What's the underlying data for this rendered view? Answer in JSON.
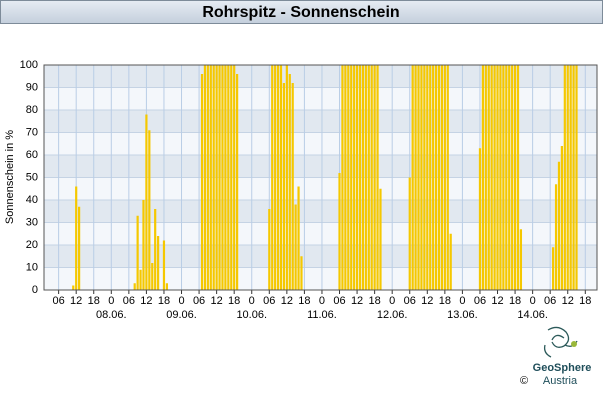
{
  "chart_data": {
    "type": "bar",
    "title": "Rohrspitz - Sonnenschein",
    "y_label": "Sonnenschein in %",
    "x": [
      11,
      12,
      13,
      32,
      33,
      34,
      35,
      36,
      37,
      38,
      39,
      40,
      42,
      43,
      55,
      56,
      57,
      58,
      59,
      60,
      61,
      62,
      63,
      64,
      65,
      66,
      67,
      78,
      79,
      80,
      81,
      82,
      83,
      84,
      85,
      86,
      87,
      88,
      89,
      102,
      103,
      104,
      105,
      106,
      107,
      108,
      109,
      110,
      111,
      112,
      113,
      114,
      115,
      116,
      126,
      127,
      128,
      129,
      130,
      131,
      132,
      133,
      134,
      135,
      136,
      137,
      138,
      139,
      140,
      150,
      151,
      152,
      153,
      154,
      155,
      156,
      157,
      158,
      159,
      160,
      161,
      162,
      163,
      164,
      175,
      176,
      177,
      178,
      179,
      180,
      181,
      182,
      183
    ],
    "values": [
      2,
      46,
      37,
      3,
      33,
      9,
      40,
      78,
      71,
      12,
      36,
      24,
      22,
      3,
      96,
      100,
      100,
      100,
      100,
      100,
      100,
      100,
      100,
      100,
      100,
      100,
      96,
      36,
      100,
      100,
      100,
      100,
      92,
      100,
      96,
      92,
      38,
      46,
      15,
      52,
      100,
      100,
      100,
      100,
      100,
      100,
      100,
      100,
      100,
      100,
      100,
      100,
      100,
      45,
      50,
      100,
      100,
      100,
      100,
      100,
      100,
      100,
      100,
      100,
      100,
      100,
      100,
      100,
      25,
      63,
      100,
      100,
      100,
      100,
      100,
      100,
      100,
      100,
      100,
      100,
      100,
      100,
      100,
      27,
      19,
      47,
      57,
      64,
      100,
      100,
      100,
      100,
      100
    ],
    "color": "#f5c800",
    "xlim": [
      1,
      190
    ],
    "xticks": [
      {
        "value": 6,
        "label": "06"
      },
      12,
      18,
      {
        "value": 24,
        "label": "0"
      },
      {
        "value": 30,
        "label": "06"
      },
      {
        "value": 36,
        "label": "12"
      },
      {
        "value": 42,
        "label": "18"
      },
      {
        "value": 48,
        "label": "0"
      },
      {
        "value": 54,
        "label": "06"
      },
      {
        "value": 60,
        "label": "12"
      },
      {
        "value": 66,
        "label": "18"
      },
      {
        "value": 72,
        "label": "0"
      },
      {
        "value": 78,
        "label": "06"
      },
      {
        "value": 84,
        "label": "12"
      },
      {
        "value": 90,
        "label": "18"
      },
      {
        "value": 96,
        "label": "0"
      },
      {
        "value": 102,
        "label": "06"
      },
      {
        "value": 108,
        "label": "12"
      },
      {
        "value": 114,
        "label": "18"
      },
      {
        "value": 120,
        "label": "0"
      },
      {
        "value": 126,
        "label": "06"
      },
      {
        "value": 132,
        "label": "12"
      },
      {
        "value": 138,
        "label": "18"
      },
      {
        "value": 144,
        "label": "0"
      },
      {
        "value": 150,
        "label": "06"
      },
      {
        "value": 156,
        "label": "12"
      },
      {
        "value": 162,
        "label": "18"
      },
      {
        "value": 168,
        "label": "0"
      },
      {
        "value": 174,
        "label": "06"
      },
      {
        "value": 180,
        "label": "12"
      },
      {
        "value": 186,
        "label": "18"
      }
    ],
    "date_labels": [
      {
        "value": 24,
        "label": "08.06."
      },
      {
        "value": 48,
        "label": "09.06."
      },
      {
        "value": 72,
        "label": "10.06."
      },
      {
        "value": 96,
        "label": "11.06."
      },
      {
        "value": 120,
        "label": "12.06."
      },
      {
        "value": 144,
        "label": "13.06."
      },
      {
        "value": 168,
        "label": "14.06."
      }
    ],
    "ylim": [
      0,
      100
    ],
    "yticks": [
      0,
      10,
      20,
      30,
      40,
      50,
      60,
      70,
      80,
      90,
      100
    ],
    "grid": true,
    "logo_name": "GeoSphere",
    "logo_sub": "Austria",
    "copyright": "©"
  }
}
